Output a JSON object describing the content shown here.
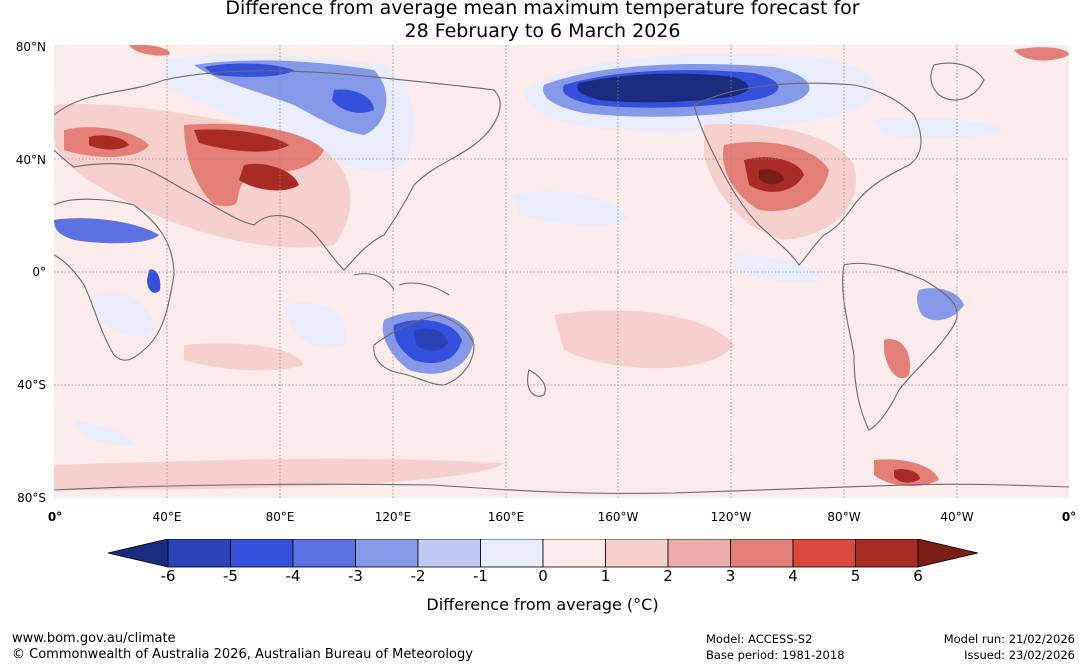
{
  "title": {
    "line1": "Difference from average mean maximum temperature forecast for",
    "line2": "28 February to 6 March 2026"
  },
  "map": {
    "lat_labels": [
      "80°N",
      "40°N",
      "0°",
      "40°S",
      "80°S"
    ],
    "lon_labels": [
      "0°",
      "40°E",
      "80°E",
      "120°E",
      "160°E",
      "160°W",
      "120°W",
      "80°W",
      "40°W",
      "0°"
    ],
    "anomalies": [
      {
        "region": "Northern Canada / Alaska",
        "value": -6
      },
      {
        "region": "Central Siberia",
        "value": -4
      },
      {
        "region": "Central Australia",
        "value": -5
      },
      {
        "region": "East Africa",
        "value": -4
      },
      {
        "region": "Eastern Brazil",
        "value": -3
      },
      {
        "region": "Southern United States",
        "value": 6
      },
      {
        "region": "Central Asia",
        "value": 6
      },
      {
        "region": "Eastern Europe",
        "value": 5
      },
      {
        "region": "Southern South America",
        "value": 4
      },
      {
        "region": "Antarctic Peninsula",
        "value": 5
      }
    ]
  },
  "colorbar": {
    "ticks": [
      "-6",
      "-5",
      "-4",
      "-3",
      "-2",
      "-1",
      "0",
      "1",
      "2",
      "3",
      "4",
      "5",
      "6"
    ],
    "colors": [
      "#1b2b80",
      "#2a43b7",
      "#3450dd",
      "#5b72e2",
      "#8698e8",
      "#c0c9f3",
      "#e8ecfb",
      "#fbebea",
      "#f5d0cc",
      "#ecaca7",
      "#e47f78",
      "#d8483d",
      "#a82c24",
      "#7a1d17"
    ],
    "title": "Difference from average (°C)"
  },
  "footer": {
    "url": "www.bom.gov.au/climate",
    "copyright": "© Commonwealth of Australia 2026, Australian Bureau of Meteorology",
    "model": "Model: ACCESS-S2",
    "base_period": "Base period: 1981-2018",
    "model_run": "Model run: 21/02/2026",
    "issued": "Issued: 23/02/2026"
  }
}
